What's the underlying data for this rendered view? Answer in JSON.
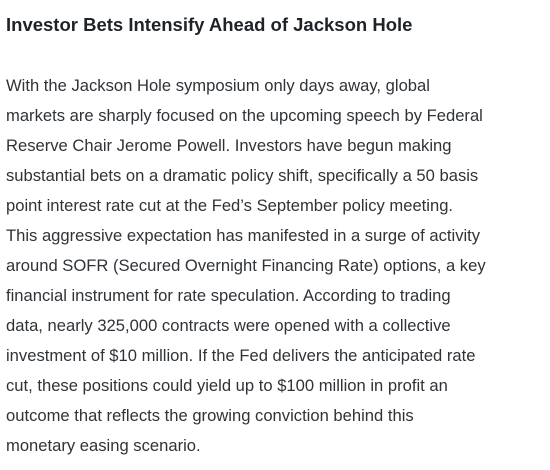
{
  "article": {
    "title": "Investor Bets Intensify Ahead of Jackson Hole",
    "lines": [
      "With the Jackson Hole symposium only days away, global",
      "markets are sharply focused on the upcoming speech by Federal",
      "Reserve Chair Jerome Powell. Investors have begun making",
      "substantial bets on a dramatic policy shift, specifically a 50 basis",
      "point interest rate cut at the Fed’s September policy meeting.",
      "This aggressive expectation has manifested in a surge of activity",
      "around SOFR (Secured Overnight Financing Rate) options, a key",
      "financial instrument for rate speculation. According to trading",
      "data, nearly 325,000 contracts were opened with a collective",
      "investment of $10 million. If the Fed delivers the anticipated rate",
      "cut, these positions could yield up to $100 million in profit an",
      "outcome that reflects the growing conviction behind this",
      "monetary easing scenario."
    ]
  }
}
